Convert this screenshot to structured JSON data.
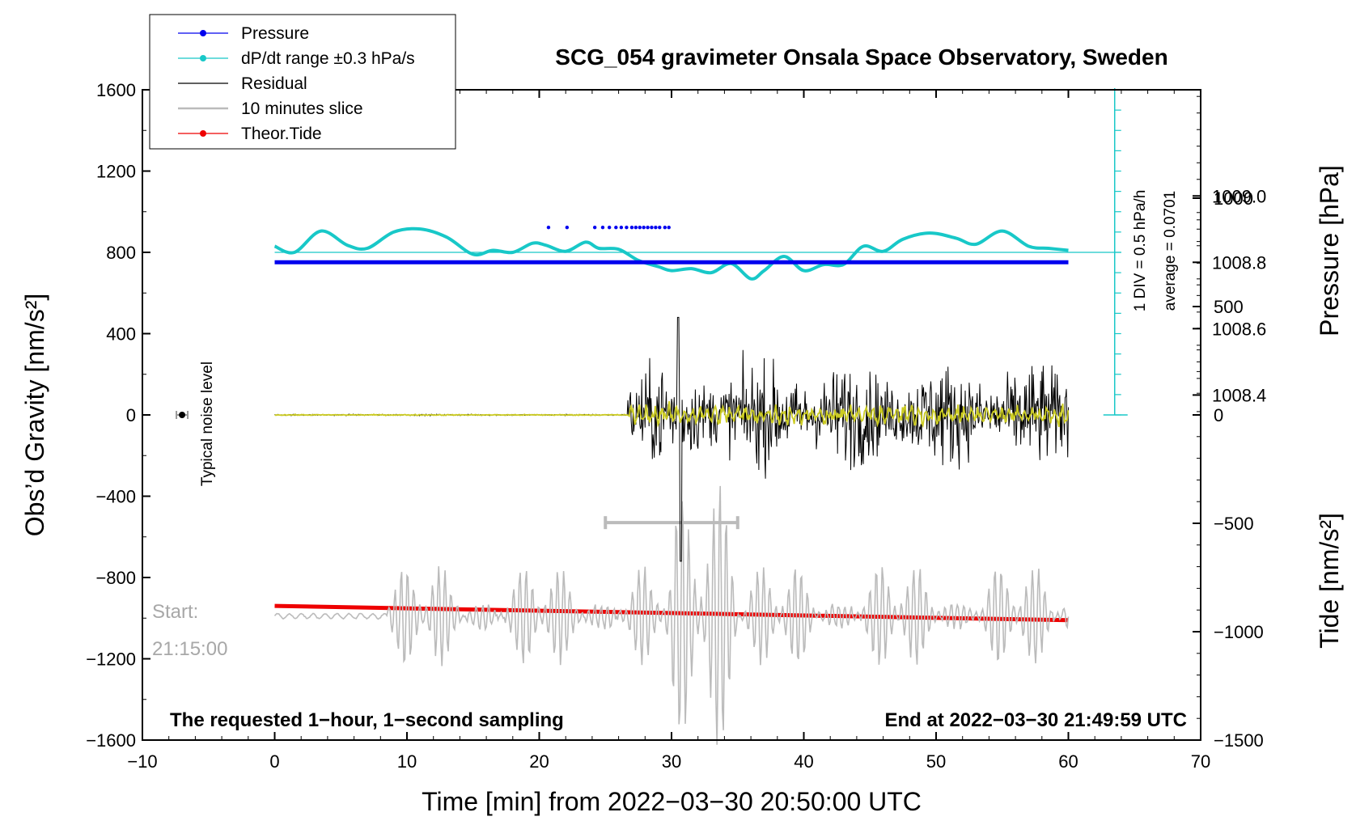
{
  "chart_data": {
    "type": "line",
    "title": "SCG_054 gravimeter Onsala Space Observatory, Sweden",
    "xlabel": "Time [min] from 2022−03−30 20:50:00 UTC",
    "ylabel_left": "Obs’d Gravity [nm/s²]",
    "ylabel_right_pressure": "Pressure [hPa]",
    "ylabel_right_tide": "Tide [nm/s²]",
    "xlim": [
      -10,
      70
    ],
    "ylim": [
      -1600,
      1600
    ],
    "x_ticks": [
      {
        "v": -10,
        "label": "−10"
      },
      {
        "v": 0,
        "label": "0"
      },
      {
        "v": 10,
        "label": "10"
      },
      {
        "v": 20,
        "label": "20"
      },
      {
        "v": 30,
        "label": "30"
      },
      {
        "v": 40,
        "label": "40"
      },
      {
        "v": 50,
        "label": "50"
      },
      {
        "v": 60,
        "label": "60"
      },
      {
        "v": 70,
        "label": "70"
      }
    ],
    "y_ticks": [
      {
        "v": 1600,
        "label": "1600"
      },
      {
        "v": 1200,
        "label": "1200"
      },
      {
        "v": 800,
        "label": "800"
      },
      {
        "v": 400,
        "label": "400"
      },
      {
        "v": 0,
        "label": "0"
      },
      {
        "v": -400,
        "label": "−400"
      },
      {
        "v": -800,
        "label": "−800"
      },
      {
        "v": -1200,
        "label": "−1200"
      },
      {
        "v": -1600,
        "label": "−1600"
      }
    ],
    "pressure_axis": {
      "range": [
        1007.36,
        1009.32
      ],
      "ticks": [
        {
          "v": 1009.0,
          "label": "1009.0"
        },
        {
          "v": 1008.8,
          "label": "1008.8"
        },
        {
          "v": 1008.6,
          "label": "1008.6"
        },
        {
          "v": 1008.4,
          "label": "1008.4"
        }
      ]
    },
    "tide_axis": {
      "range": [
        -1500,
        1500
      ],
      "ticks": [
        {
          "v": 1000,
          "label": "1000"
        },
        {
          "v": 500,
          "label": "500"
        },
        {
          "v": 0,
          "label": "0"
        },
        {
          "v": -500,
          "label": "−500"
        },
        {
          "v": -1000,
          "label": "−1000"
        },
        {
          "v": -1500,
          "label": "−1500"
        }
      ]
    },
    "legend": [
      {
        "name": "Pressure",
        "color": "#0000ee"
      },
      {
        "name": "dP/dt range ±0.3 hPa/s",
        "color": "#18c8c8"
      },
      {
        "name": "Residual",
        "color": "#000000"
      },
      {
        "name": "10 minutes slice",
        "color": "#bbbbbb"
      },
      {
        "name": "Theor.Tide",
        "color": "#ee0000"
      }
    ],
    "series": [
      {
        "name": "Pressure",
        "x_range": [
          0,
          60
        ],
        "value_hpa": 1008.8,
        "scattered_points_x": [
          20.7,
          22.1,
          24.2,
          24.8,
          25.3,
          25.8,
          26.2,
          26.6,
          27.0,
          27.3,
          27.6,
          27.9,
          28.2,
          28.5,
          28.8,
          29.1,
          29.5,
          29.8
        ]
      },
      {
        "name": "dP/dt range ±0.3 hPa/s",
        "baseline": 800,
        "x": [
          0,
          1.5,
          3.5,
          5.5,
          7,
          9,
          11,
          13,
          15,
          16.5,
          18,
          19.5,
          20.5,
          22,
          23.5,
          24.5,
          26,
          27.5,
          29,
          30,
          31.5,
          33,
          34.5,
          36,
          37,
          38.5,
          40,
          41.5,
          43,
          44.5,
          46,
          47.5,
          49.5,
          51.5,
          53,
          55,
          57,
          58.5,
          60
        ],
        "values": [
          830,
          800,
          905,
          835,
          820,
          900,
          915,
          875,
          790,
          810,
          800,
          845,
          835,
          805,
          850,
          820,
          815,
          760,
          730,
          710,
          720,
          700,
          745,
          670,
          710,
          780,
          710,
          740,
          740,
          830,
          805,
          865,
          895,
          870,
          840,
          905,
          830,
          820,
          810
        ]
      },
      {
        "name": "Residual",
        "quiet_until": 26.7,
        "max_spike": 700,
        "min_spike": -780,
        "spike_x": 30.5
      },
      {
        "name": "10 minutes slice",
        "baseline": -990,
        "ranged_bar_x": [
          25,
          35
        ],
        "ranged_bar_y": -530
      },
      {
        "name": "Theor.Tide",
        "x": [
          0,
          60
        ],
        "values": [
          -940,
          -1010
        ]
      }
    ],
    "dpdt_scale": {
      "div_label": "1 DIV = 0.5 hPa/h",
      "average_label": "average = 0.0701"
    },
    "noise": {
      "label": "Typical noise level",
      "x": -7,
      "y": 0
    }
  },
  "annotations": {
    "start_label": "Start:",
    "start_time": "21:15:00",
    "sampling_note": "The requested 1−hour, 1−second sampling",
    "end_note": "End at 2022−03−30 21:49:59 UTC"
  }
}
